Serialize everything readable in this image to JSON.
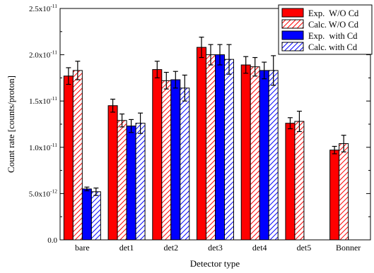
{
  "chart_data": {
    "type": "bar",
    "title": "",
    "xlabel": "Detector type",
    "ylabel": "Count rate [counts/proton]",
    "ylim": [
      0,
      2.5e-11
    ],
    "y_ticks": [
      0,
      5e-12,
      1e-11,
      1.5e-11,
      2e-11,
      2.5e-11
    ],
    "y_tick_labels": [
      {
        "mantissa": "0.0",
        "exponent": ""
      },
      {
        "mantissa": "5.0x10",
        "exponent": "-12"
      },
      {
        "mantissa": "1.0x10",
        "exponent": "-11"
      },
      {
        "mantissa": "1.5x10",
        "exponent": "-11"
      },
      {
        "mantissa": "2.0x10",
        "exponent": "-11"
      },
      {
        "mantissa": "2.5x10",
        "exponent": "-11"
      }
    ],
    "categories": [
      "bare",
      "det1",
      "det2",
      "det3",
      "det4",
      "det5",
      "Bonner"
    ],
    "legend_position": "top-right",
    "grid": false,
    "series": [
      {
        "name": "Exp.  W/O Cd",
        "color": "#ff0000",
        "fill": "solid",
        "values": [
          1.77e-11,
          1.45e-11,
          1.84e-11,
          2.08e-11,
          1.89e-11,
          1.26e-11,
          9.7e-12
        ],
        "errors": [
          9e-13,
          7e-13,
          9e-13,
          1.1e-12,
          9e-13,
          6e-13,
          4e-13
        ]
      },
      {
        "name": "Calc. W/O Cd",
        "color": "#ff0000",
        "fill": "hatch",
        "values": [
          1.83e-11,
          1.29e-11,
          1.72e-11,
          2e-11,
          1.87e-11,
          1.28e-11,
          1.04e-11
        ],
        "errors": [
          1e-12,
          7e-13,
          9e-13,
          1.1e-12,
          1e-12,
          1.1e-12,
          9e-13
        ]
      },
      {
        "name": "Exp.  with Cd",
        "color": "#0000ff",
        "fill": "solid",
        "values": [
          5.5e-12,
          1.23e-11,
          1.73e-11,
          2e-11,
          1.83e-11,
          null,
          null
        ],
        "errors": [
          2e-13,
          7e-13,
          9e-13,
          1.1e-12,
          9e-13,
          null,
          null
        ]
      },
      {
        "name": "Calc. with Cd",
        "color": "#0000ff",
        "fill": "hatch",
        "values": [
          5.2e-12,
          1.26e-11,
          1.64e-11,
          1.95e-11,
          1.83e-11,
          null,
          null
        ],
        "errors": [
          4e-13,
          1.1e-12,
          1.4e-12,
          1.6e-12,
          1.6e-12,
          null,
          null
        ]
      }
    ]
  }
}
